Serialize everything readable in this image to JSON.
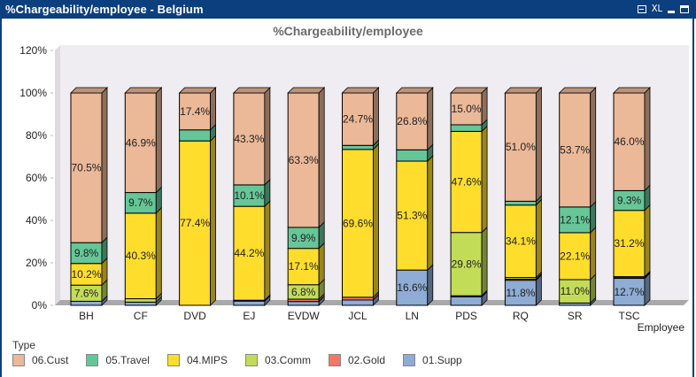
{
  "window": {
    "title": "%Chargeability/employee - Belgium",
    "controls": {
      "print_icon": "printer-icon",
      "xl_label": "XL",
      "minimize_icon": "minimize-icon",
      "maximize_icon": "maximize-icon"
    }
  },
  "legend": {
    "title": "Type",
    "items": [
      {
        "label": "06.Cust",
        "color": "#ebb898"
      },
      {
        "label": "05.Travel",
        "color": "#66c697"
      },
      {
        "label": "04.MIPS",
        "color": "#ffdd2c"
      },
      {
        "label": "03.Comm",
        "color": "#c3dc58"
      },
      {
        "label": "02.Gold",
        "color": "#f87665"
      },
      {
        "label": "01.Supp",
        "color": "#8eacd4"
      }
    ]
  },
  "chart_data": {
    "type": "bar",
    "stacked": true,
    "three_d": true,
    "title": "%Chargeability/employee",
    "xlabel": "Employee",
    "ylabel": "",
    "ylim": [
      0,
      120
    ],
    "yticks": [
      "0%",
      "20%",
      "40%",
      "60%",
      "80%",
      "100%",
      "120%"
    ],
    "ytick_values": [
      0,
      20,
      40,
      60,
      80,
      100,
      120
    ],
    "grid": false,
    "legend_position": "bottom-left",
    "categories": [
      "BH",
      "CF",
      "DVD",
      "EJ",
      "EVDW",
      "JCL",
      "LN",
      "PDS",
      "RQ",
      "SR",
      "TSC"
    ],
    "series": [
      {
        "name": "01.Supp",
        "color": "#8eacd4",
        "values": [
          1.9,
          1.5,
          0.0,
          2.0,
          1.8,
          2.5,
          16.6,
          4.0,
          11.8,
          1.1,
          12.7
        ]
      },
      {
        "name": "02.Gold",
        "color": "#f87665",
        "values": [
          0.0,
          0.0,
          0.0,
          0.4,
          1.1,
          1.3,
          0.0,
          0.5,
          0.5,
          0.0,
          0.3
        ]
      },
      {
        "name": "03.Comm",
        "color": "#c3dc58",
        "values": [
          7.6,
          1.6,
          0.0,
          0.0,
          6.8,
          0.0,
          0.0,
          29.8,
          0.8,
          11.0,
          0.5
        ]
      },
      {
        "name": "04.MIPS",
        "color": "#ffdd2c",
        "values": [
          10.2,
          40.3,
          77.4,
          44.2,
          17.1,
          69.6,
          51.3,
          47.6,
          34.1,
          22.1,
          31.2
        ]
      },
      {
        "name": "05.Travel",
        "color": "#66c697",
        "values": [
          9.8,
          9.7,
          5.2,
          10.1,
          9.9,
          1.9,
          5.3,
          3.1,
          1.8,
          12.1,
          9.3
        ]
      },
      {
        "name": "06.Cust",
        "color": "#ebb898",
        "values": [
          70.5,
          46.9,
          17.4,
          43.3,
          63.3,
          24.7,
          26.8,
          15.0,
          51.0,
          53.7,
          46.0
        ]
      }
    ],
    "data_labels": [
      {
        "category": "BH",
        "series": "03.Comm",
        "text": "7.6%"
      },
      {
        "category": "BH",
        "series": "04.MIPS",
        "text": "10.2%"
      },
      {
        "category": "BH",
        "series": "05.Travel",
        "text": "9.8%"
      },
      {
        "category": "BH",
        "series": "06.Cust",
        "text": "70.5%"
      },
      {
        "category": "CF",
        "series": "04.MIPS",
        "text": "40.3%"
      },
      {
        "category": "CF",
        "series": "05.Travel",
        "text": "9.7%"
      },
      {
        "category": "CF",
        "series": "06.Cust",
        "text": "46.9%"
      },
      {
        "category": "DVD",
        "series": "04.MIPS",
        "text": "77.4%"
      },
      {
        "category": "DVD",
        "series": "06.Cust",
        "text": "17.4%"
      },
      {
        "category": "EJ",
        "series": "04.MIPS",
        "text": "44.2%"
      },
      {
        "category": "EJ",
        "series": "05.Travel",
        "text": "10.1%"
      },
      {
        "category": "EJ",
        "series": "06.Cust",
        "text": "43.3%"
      },
      {
        "category": "EVDW",
        "series": "03.Comm",
        "text": "6.8%"
      },
      {
        "category": "EVDW",
        "series": "04.MIPS",
        "text": "17.1%"
      },
      {
        "category": "EVDW",
        "series": "05.Travel",
        "text": "9.9%"
      },
      {
        "category": "EVDW",
        "series": "06.Cust",
        "text": "63.3%"
      },
      {
        "category": "JCL",
        "series": "04.MIPS",
        "text": "69.6%"
      },
      {
        "category": "JCL",
        "series": "06.Cust",
        "text": "24.7%"
      },
      {
        "category": "LN",
        "series": "01.Supp",
        "text": "16.6%"
      },
      {
        "category": "LN",
        "series": "04.MIPS",
        "text": "51.3%"
      },
      {
        "category": "LN",
        "series": "06.Cust",
        "text": "26.8%"
      },
      {
        "category": "PDS",
        "series": "03.Comm",
        "text": "29.8%"
      },
      {
        "category": "PDS",
        "series": "04.MIPS",
        "text": "47.6%"
      },
      {
        "category": "PDS",
        "series": "06.Cust",
        "text": "15.0%"
      },
      {
        "category": "RQ",
        "series": "01.Supp",
        "text": "11.8%"
      },
      {
        "category": "RQ",
        "series": "04.MIPS",
        "text": "34.1%"
      },
      {
        "category": "RQ",
        "series": "06.Cust",
        "text": "51.0%"
      },
      {
        "category": "SR",
        "series": "03.Comm",
        "text": "11.0%"
      },
      {
        "category": "SR",
        "series": "04.MIPS",
        "text": "22.1%"
      },
      {
        "category": "SR",
        "series": "05.Travel",
        "text": "12.1%"
      },
      {
        "category": "SR",
        "series": "06.Cust",
        "text": "53.7%"
      },
      {
        "category": "TSC",
        "series": "01.Supp",
        "text": "12.7%"
      },
      {
        "category": "TSC",
        "series": "04.MIPS",
        "text": "31.2%"
      },
      {
        "category": "TSC",
        "series": "05.Travel",
        "text": "9.3%"
      },
      {
        "category": "TSC",
        "series": "06.Cust",
        "text": "46.0%"
      }
    ]
  }
}
